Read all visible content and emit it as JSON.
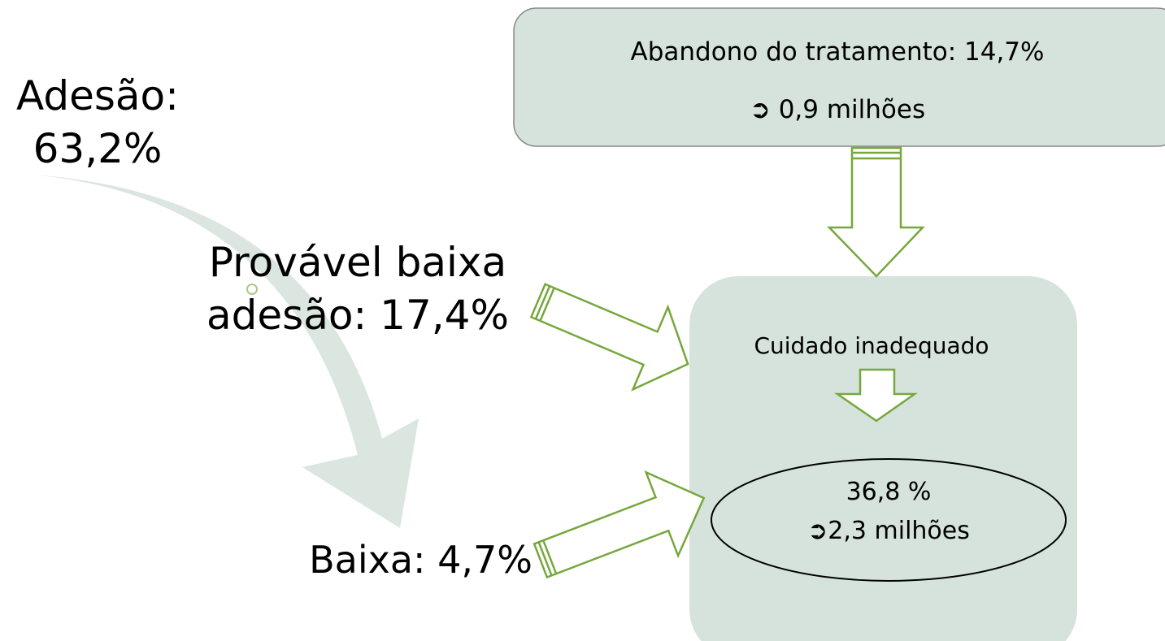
{
  "labels": {
    "adesao": [
      "Adesão:",
      "63,2%"
    ],
    "provavel": [
      "Provável baixa",
      "adesão: 17,4%"
    ],
    "baixa": "Baixa: 4,7%"
  },
  "abandono": {
    "title": "Abandono do tratamento: 14,7%",
    "detail": "➲ 0,9 milhões"
  },
  "cuidado": {
    "title": "Cuidado inadequado",
    "result": [
      "36,8 %",
      "➲2,3 milhões"
    ]
  }
}
